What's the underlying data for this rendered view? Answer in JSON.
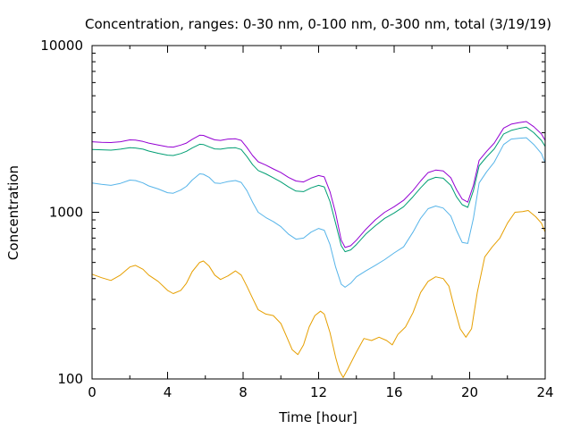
{
  "chart_data": {
    "type": "line",
    "title": "Concentration, ranges: 0-30 nm, 0-100 nm, 0-300 nm, total (3/19/19)",
    "xlabel": "Time [hour]",
    "ylabel": "Concentration",
    "xlim": [
      0,
      24
    ],
    "ylim": [
      100,
      10000
    ],
    "yscale": "log",
    "grid": false,
    "legend": "none",
    "xticks": [
      0,
      4,
      8,
      12,
      16,
      20,
      24
    ],
    "xtick_labels": [
      "0",
      "4",
      "8",
      "12",
      "16",
      "20",
      "24"
    ],
    "yticks": [
      100,
      1000,
      10000
    ],
    "ytick_labels": [
      "100",
      "1000",
      "10000"
    ],
    "series": [
      {
        "color": "#e69f00",
        "points": [
          [
            0,
            425
          ],
          [
            0.5,
            405
          ],
          [
            1,
            390
          ],
          [
            1.5,
            420
          ],
          [
            2,
            470
          ],
          [
            2.3,
            480
          ],
          [
            2.7,
            455
          ],
          [
            3,
            420
          ],
          [
            3.5,
            385
          ],
          [
            4,
            340
          ],
          [
            4.3,
            325
          ],
          [
            4.7,
            340
          ],
          [
            5,
            375
          ],
          [
            5.3,
            440
          ],
          [
            5.7,
            500
          ],
          [
            5.9,
            510
          ],
          [
            6.2,
            475
          ],
          [
            6.5,
            420
          ],
          [
            6.8,
            395
          ],
          [
            7.2,
            415
          ],
          [
            7.6,
            445
          ],
          [
            7.9,
            420
          ],
          [
            8.2,
            360
          ],
          [
            8.5,
            305
          ],
          [
            8.8,
            260
          ],
          [
            9.2,
            245
          ],
          [
            9.6,
            240
          ],
          [
            10,
            215
          ],
          [
            10.3,
            180
          ],
          [
            10.6,
            150
          ],
          [
            10.9,
            140
          ],
          [
            11.2,
            160
          ],
          [
            11.5,
            205
          ],
          [
            11.8,
            240
          ],
          [
            12.1,
            255
          ],
          [
            12.3,
            245
          ],
          [
            12.6,
            190
          ],
          [
            12.9,
            135
          ],
          [
            13.1,
            112
          ],
          [
            13.3,
            102
          ],
          [
            13.6,
            118
          ],
          [
            14,
            145
          ],
          [
            14.4,
            175
          ],
          [
            14.8,
            170
          ],
          [
            15.2,
            178
          ],
          [
            15.6,
            170
          ],
          [
            15.9,
            160
          ],
          [
            16.2,
            185
          ],
          [
            16.6,
            205
          ],
          [
            17,
            250
          ],
          [
            17.4,
            330
          ],
          [
            17.8,
            385
          ],
          [
            18.2,
            410
          ],
          [
            18.6,
            400
          ],
          [
            18.9,
            360
          ],
          [
            19.2,
            265
          ],
          [
            19.5,
            200
          ],
          [
            19.8,
            178
          ],
          [
            20.1,
            200
          ],
          [
            20.4,
            330
          ],
          [
            20.8,
            540
          ],
          [
            21.2,
            620
          ],
          [
            21.6,
            700
          ],
          [
            22,
            860
          ],
          [
            22.4,
            1000
          ],
          [
            22.8,
            1010
          ],
          [
            23.1,
            1025
          ],
          [
            23.5,
            940
          ],
          [
            23.8,
            860
          ],
          [
            24,
            760
          ]
        ]
      },
      {
        "color": "#56b4e9",
        "points": [
          [
            0,
            1500
          ],
          [
            0.5,
            1470
          ],
          [
            1,
            1450
          ],
          [
            1.5,
            1490
          ],
          [
            2,
            1560
          ],
          [
            2.3,
            1550
          ],
          [
            2.7,
            1500
          ],
          [
            3,
            1440
          ],
          [
            3.5,
            1380
          ],
          [
            4,
            1310
          ],
          [
            4.3,
            1300
          ],
          [
            4.7,
            1360
          ],
          [
            5,
            1430
          ],
          [
            5.3,
            1560
          ],
          [
            5.7,
            1700
          ],
          [
            5.9,
            1690
          ],
          [
            6.2,
            1620
          ],
          [
            6.5,
            1500
          ],
          [
            6.8,
            1490
          ],
          [
            7.2,
            1530
          ],
          [
            7.6,
            1550
          ],
          [
            7.9,
            1510
          ],
          [
            8.2,
            1350
          ],
          [
            8.5,
            1150
          ],
          [
            8.8,
            1000
          ],
          [
            9.2,
            930
          ],
          [
            9.6,
            880
          ],
          [
            10,
            820
          ],
          [
            10.4,
            740
          ],
          [
            10.8,
            690
          ],
          [
            11.2,
            700
          ],
          [
            11.6,
            760
          ],
          [
            12,
            800
          ],
          [
            12.3,
            780
          ],
          [
            12.6,
            640
          ],
          [
            12.9,
            470
          ],
          [
            13.2,
            370
          ],
          [
            13.4,
            355
          ],
          [
            13.7,
            375
          ],
          [
            14,
            410
          ],
          [
            14.5,
            445
          ],
          [
            15,
            480
          ],
          [
            15.5,
            520
          ],
          [
            16,
            570
          ],
          [
            16.5,
            620
          ],
          [
            17,
            760
          ],
          [
            17.4,
            920
          ],
          [
            17.8,
            1050
          ],
          [
            18.2,
            1090
          ],
          [
            18.6,
            1060
          ],
          [
            19,
            950
          ],
          [
            19.3,
            780
          ],
          [
            19.6,
            660
          ],
          [
            19.9,
            650
          ],
          [
            20.2,
            920
          ],
          [
            20.5,
            1500
          ],
          [
            20.9,
            1750
          ],
          [
            21.3,
            2000
          ],
          [
            21.8,
            2550
          ],
          [
            22.2,
            2750
          ],
          [
            22.6,
            2780
          ],
          [
            23,
            2800
          ],
          [
            23.4,
            2550
          ],
          [
            23.8,
            2250
          ],
          [
            24,
            1980
          ]
        ]
      },
      {
        "color": "#009e73",
        "points": [
          [
            0,
            2380
          ],
          [
            0.5,
            2370
          ],
          [
            1,
            2360
          ],
          [
            1.5,
            2390
          ],
          [
            2,
            2440
          ],
          [
            2.3,
            2430
          ],
          [
            2.7,
            2390
          ],
          [
            3,
            2330
          ],
          [
            3.5,
            2260
          ],
          [
            4,
            2200
          ],
          [
            4.3,
            2190
          ],
          [
            4.7,
            2250
          ],
          [
            5,
            2320
          ],
          [
            5.3,
            2430
          ],
          [
            5.7,
            2560
          ],
          [
            5.9,
            2550
          ],
          [
            6.2,
            2470
          ],
          [
            6.5,
            2400
          ],
          [
            6.8,
            2390
          ],
          [
            7.2,
            2430
          ],
          [
            7.6,
            2440
          ],
          [
            7.9,
            2380
          ],
          [
            8.2,
            2160
          ],
          [
            8.5,
            1930
          ],
          [
            8.8,
            1780
          ],
          [
            9.2,
            1700
          ],
          [
            9.6,
            1610
          ],
          [
            10,
            1520
          ],
          [
            10.4,
            1420
          ],
          [
            10.8,
            1340
          ],
          [
            11.2,
            1330
          ],
          [
            11.6,
            1400
          ],
          [
            12,
            1450
          ],
          [
            12.3,
            1420
          ],
          [
            12.6,
            1160
          ],
          [
            12.9,
            860
          ],
          [
            13.2,
            630
          ],
          [
            13.4,
            580
          ],
          [
            13.7,
            595
          ],
          [
            14,
            640
          ],
          [
            14.5,
            740
          ],
          [
            15,
            830
          ],
          [
            15.5,
            920
          ],
          [
            16,
            990
          ],
          [
            16.5,
            1080
          ],
          [
            17,
            1240
          ],
          [
            17.4,
            1400
          ],
          [
            17.8,
            1560
          ],
          [
            18.2,
            1620
          ],
          [
            18.6,
            1600
          ],
          [
            19,
            1450
          ],
          [
            19.3,
            1240
          ],
          [
            19.6,
            1110
          ],
          [
            19.9,
            1070
          ],
          [
            20.2,
            1350
          ],
          [
            20.5,
            1900
          ],
          [
            20.9,
            2150
          ],
          [
            21.3,
            2400
          ],
          [
            21.8,
            2950
          ],
          [
            22.2,
            3100
          ],
          [
            22.6,
            3180
          ],
          [
            23,
            3240
          ],
          [
            23.4,
            3000
          ],
          [
            23.8,
            2700
          ],
          [
            24,
            2480
          ]
        ]
      },
      {
        "color": "#9400d3",
        "points": [
          [
            0,
            2650
          ],
          [
            0.5,
            2630
          ],
          [
            1,
            2620
          ],
          [
            1.5,
            2650
          ],
          [
            2,
            2720
          ],
          [
            2.3,
            2710
          ],
          [
            2.7,
            2660
          ],
          [
            3,
            2600
          ],
          [
            3.5,
            2530
          ],
          [
            4,
            2470
          ],
          [
            4.3,
            2460
          ],
          [
            4.7,
            2530
          ],
          [
            5,
            2600
          ],
          [
            5.3,
            2740
          ],
          [
            5.7,
            2900
          ],
          [
            5.9,
            2890
          ],
          [
            6.2,
            2800
          ],
          [
            6.5,
            2720
          ],
          [
            6.8,
            2700
          ],
          [
            7.2,
            2750
          ],
          [
            7.6,
            2760
          ],
          [
            7.9,
            2700
          ],
          [
            8.2,
            2450
          ],
          [
            8.5,
            2190
          ],
          [
            8.8,
            2010
          ],
          [
            9.2,
            1920
          ],
          [
            9.6,
            1820
          ],
          [
            10,
            1730
          ],
          [
            10.4,
            1620
          ],
          [
            10.8,
            1540
          ],
          [
            11.2,
            1520
          ],
          [
            11.6,
            1600
          ],
          [
            12,
            1660
          ],
          [
            12.3,
            1630
          ],
          [
            12.6,
            1330
          ],
          [
            12.9,
            990
          ],
          [
            13.2,
            680
          ],
          [
            13.4,
            615
          ],
          [
            13.7,
            630
          ],
          [
            14,
            680
          ],
          [
            14.5,
            790
          ],
          [
            15,
            900
          ],
          [
            15.5,
            1000
          ],
          [
            16,
            1080
          ],
          [
            16.5,
            1180
          ],
          [
            17,
            1350
          ],
          [
            17.4,
            1540
          ],
          [
            17.8,
            1730
          ],
          [
            18.2,
            1790
          ],
          [
            18.6,
            1770
          ],
          [
            19,
            1610
          ],
          [
            19.3,
            1370
          ],
          [
            19.6,
            1200
          ],
          [
            19.9,
            1150
          ],
          [
            20.2,
            1450
          ],
          [
            20.5,
            2050
          ],
          [
            20.9,
            2320
          ],
          [
            21.3,
            2600
          ],
          [
            21.8,
            3200
          ],
          [
            22.2,
            3380
          ],
          [
            22.6,
            3450
          ],
          [
            23,
            3500
          ],
          [
            23.4,
            3260
          ],
          [
            23.8,
            2950
          ],
          [
            24,
            2700
          ]
        ]
      }
    ]
  }
}
